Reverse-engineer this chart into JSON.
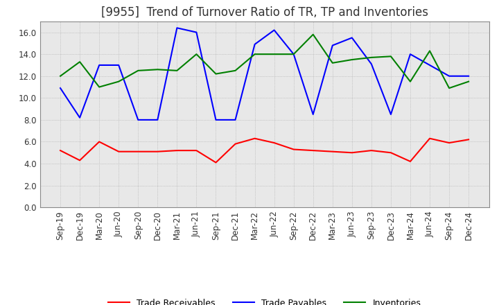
{
  "title": "[9955]  Trend of Turnover Ratio of TR, TP and Inventories",
  "ylim": [
    0,
    17.0
  ],
  "yticks": [
    0.0,
    2.0,
    4.0,
    6.0,
    8.0,
    10.0,
    12.0,
    14.0,
    16.0
  ],
  "x_labels": [
    "Sep-19",
    "Dec-19",
    "Mar-20",
    "Jun-20",
    "Sep-20",
    "Dec-20",
    "Mar-21",
    "Jun-21",
    "Sep-21",
    "Dec-21",
    "Mar-22",
    "Jun-22",
    "Sep-22",
    "Dec-22",
    "Mar-23",
    "Jun-23",
    "Sep-23",
    "Dec-23",
    "Mar-24",
    "Jun-24",
    "Sep-24",
    "Dec-24"
  ],
  "trade_receivables": [
    5.2,
    4.3,
    6.0,
    5.1,
    5.1,
    5.1,
    5.2,
    5.2,
    4.1,
    5.8,
    6.3,
    5.9,
    5.3,
    5.2,
    5.1,
    5.0,
    5.2,
    5.0,
    4.2,
    6.3,
    5.9,
    6.2
  ],
  "trade_payables": [
    10.9,
    8.2,
    13.0,
    13.0,
    8.0,
    8.0,
    16.4,
    16.0,
    8.0,
    8.0,
    14.9,
    16.2,
    14.0,
    8.5,
    14.8,
    15.5,
    13.1,
    8.5,
    14.0,
    13.0,
    12.0,
    12.0
  ],
  "inventories": [
    12.0,
    13.3,
    11.0,
    11.5,
    12.5,
    12.6,
    12.5,
    14.0,
    12.2,
    12.5,
    14.0,
    14.0,
    14.0,
    15.8,
    13.2,
    13.5,
    13.7,
    13.8,
    11.5,
    14.3,
    10.9,
    11.5
  ],
  "tr_color": "#ff0000",
  "tp_color": "#0000ff",
  "inv_color": "#008000",
  "background_color": "#ffffff",
  "plot_bg_color": "#e8e8e8",
  "grid_color": "#aaaaaa",
  "title_fontsize": 12,
  "legend_fontsize": 9,
  "tick_fontsize": 8.5
}
